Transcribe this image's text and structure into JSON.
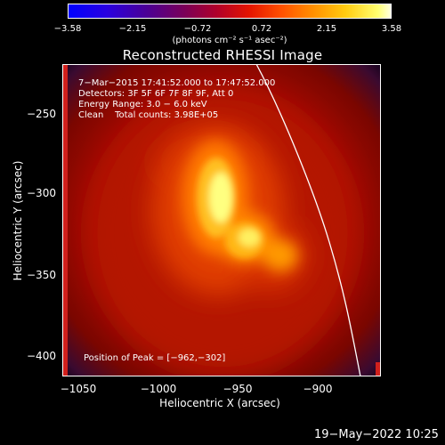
{
  "colorbar": {
    "ticks": [
      "−3.58",
      "−2.15",
      "−0.72",
      "0.72",
      "2.15",
      "3.58"
    ],
    "unit_label": "(photons cm⁻² s⁻¹ asec⁻²)"
  },
  "title": "Reconstructed RHESSI Image",
  "info": {
    "time_range": "7−Mar−2015 17:41:52.000 to 17:47:52.000",
    "detectors": "Detectors: 3F 5F 6F 7F 8F 9F, Att 0",
    "energy": "Energy Range: 3.0 − 6.0 keV",
    "method_counts": "Clean    Total counts: 3.98E+05",
    "peak": "Position of Peak = [−962,−302]"
  },
  "axes": {
    "y_title": "Heliocentric Y (arcsec)",
    "x_title": "Heliocentric X (arcsec)",
    "y_ticks": [
      "−250",
      "−300",
      "−350",
      "−400"
    ],
    "x_ticks": [
      "−1050",
      "−1000",
      "−950",
      "−900"
    ]
  },
  "footer_date": "19−May−2022 10:25",
  "colors": {
    "limb_line": "#ffffff",
    "frame": "#ffffff",
    "background": "#000000"
  }
}
